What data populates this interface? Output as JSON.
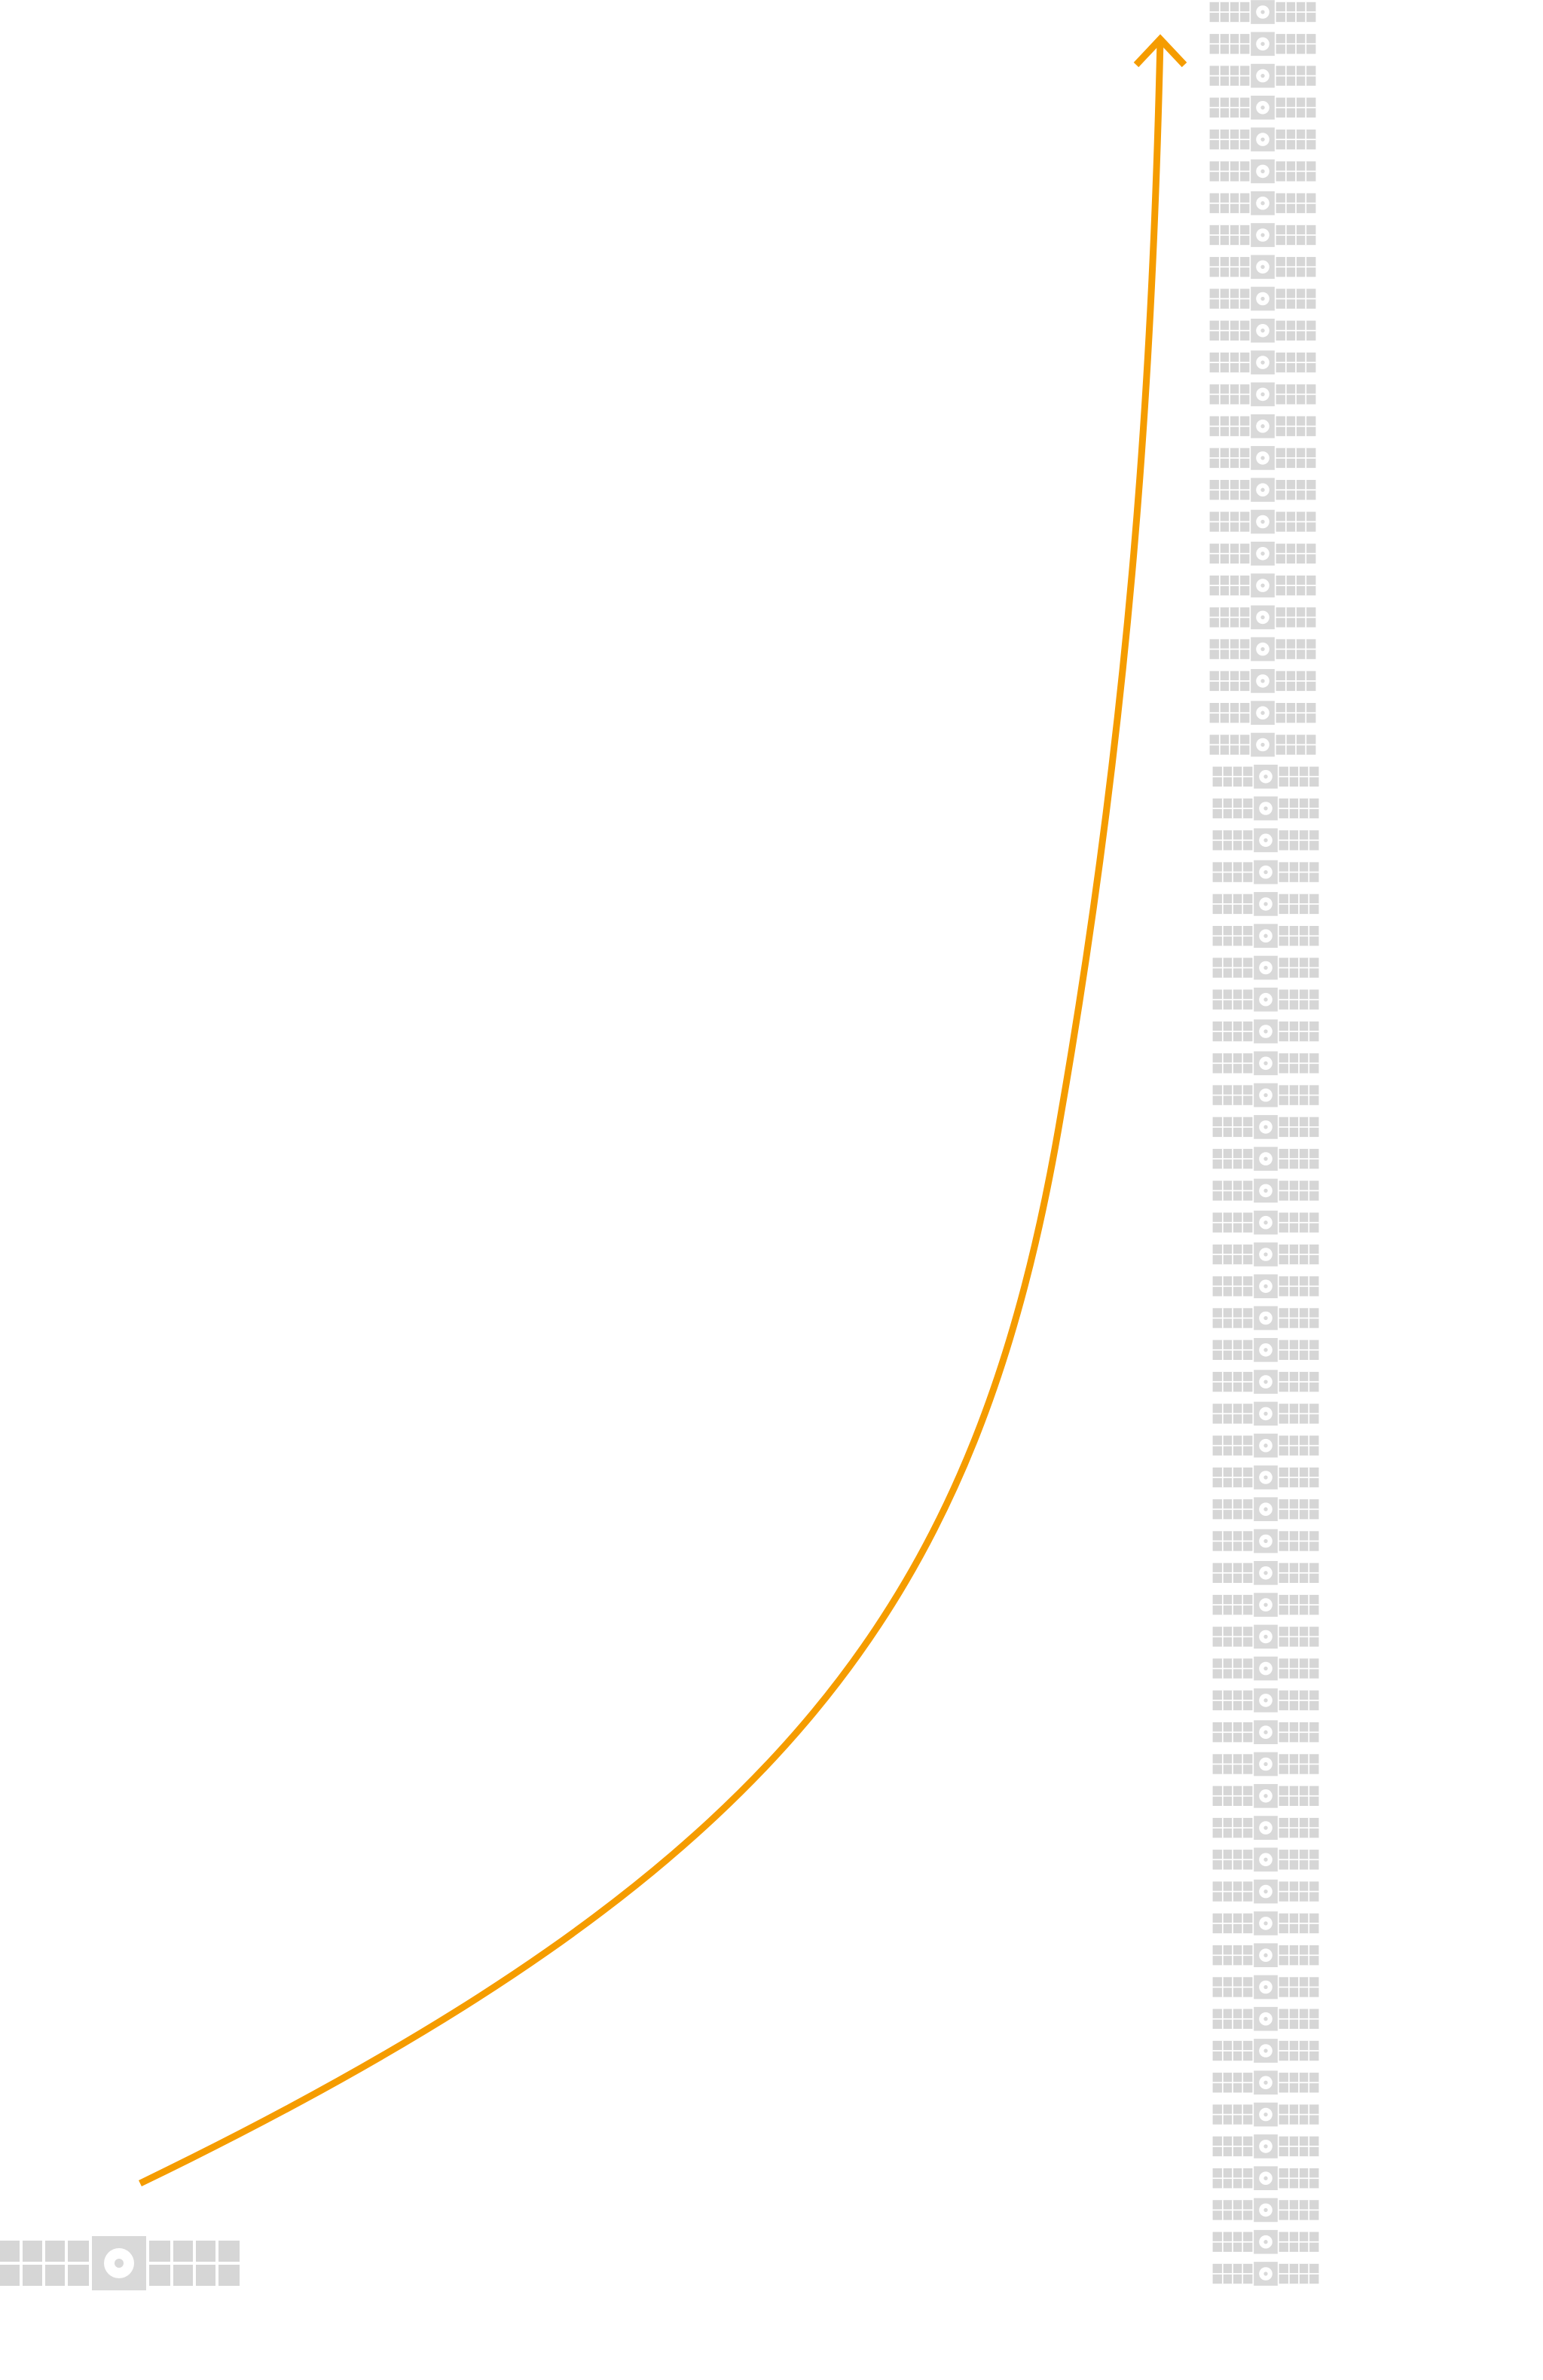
{
  "colors": {
    "background": "#ffffff",
    "growth_curve": "#f59c00",
    "satellite_body": "#d9d9d9",
    "satellite_panel": "#d6d6d6",
    "satellite_cell_line": "#ffffff",
    "satellite_dish_ring": "#ffffff",
    "satellite_dish_core": "#d9d9d9"
  },
  "icons": {
    "start_marker": "satellite-icon",
    "stack_marker": "satellite-icon",
    "curve_head": "arrow-up-icon"
  },
  "diagram": {
    "type": "growth-comparison",
    "start_satellite_count": 1,
    "stacked_satellite_count": 72,
    "curve_shape": "exponential",
    "curve_direction": "up"
  }
}
